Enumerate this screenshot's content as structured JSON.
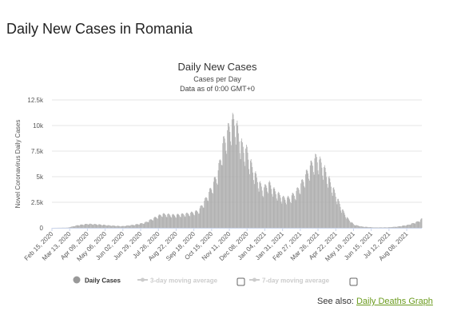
{
  "page": {
    "title": "Daily New Cases in Romania"
  },
  "see_also": {
    "prefix": "See also:",
    "link_label": "Daily Deaths Graph"
  },
  "colors": {
    "bars": "#aaaaaa",
    "grid": "#e6e6e6",
    "legend_inactive": "#cccccc",
    "link": "#6b9b1e"
  },
  "chart_data": {
    "type": "bar",
    "title": "Daily New Cases",
    "subtitle_lines": [
      "Cases per Day",
      "Data as of 0:00 GMT+0"
    ],
    "ylabel": "Novel Coronavirus Daily Cases",
    "xlabel": "",
    "ylim": [
      0,
      12500
    ],
    "y_ticks": [
      "0",
      "2.5k",
      "5k",
      "7.5k",
      "10k",
      "12.5k"
    ],
    "y_tick_values": [
      0,
      2500,
      5000,
      7500,
      10000,
      12500
    ],
    "x_range": [
      "2020-02-15",
      "2021-08-31"
    ],
    "x_ticks": [
      "2020-02-15",
      "2020-03-13",
      "2020-04-09",
      "2020-05-06",
      "2020-06-02",
      "2020-06-29",
      "2020-07-26",
      "2020-08-22",
      "2020-09-18",
      "2020-10-15",
      "2020-11-11",
      "2020-12-08",
      "2021-01-04",
      "2021-01-31",
      "2021-02-27",
      "2021-03-26",
      "2021-04-22",
      "2021-05-19",
      "2021-06-15",
      "2021-07-12",
      "2021-08-08"
    ],
    "x_tick_labels": [
      "Feb 15, 2020",
      "Mar 13, 2020",
      "Apr 09, 2020",
      "May 06, 2020",
      "Jun 02, 2020",
      "Jun 29, 2020",
      "Jul 26, 2020",
      "Aug 22, 2020",
      "Sep 18, 2020",
      "Oct 15, 2020",
      "Nov 11, 2020",
      "Dec 08, 2020",
      "Jan 04, 2021",
      "Jan 31, 2021",
      "Feb 27, 2021",
      "Mar 26, 2021",
      "Apr 22, 2021",
      "May 19, 2021",
      "Jun 15, 2021",
      "Jul 12, 2021",
      "Aug 08, 2021"
    ],
    "grid": true,
    "legend_position": "bottom",
    "legend": [
      {
        "label": "Daily Cases",
        "active": true
      },
      {
        "label": "3-day moving average",
        "active": false
      },
      {
        "label": "7-day moving average",
        "active": false
      }
    ],
    "series": [
      {
        "name": "Daily Cases",
        "approx_daily_values": [
          [
            "2020-02-15",
            0
          ],
          [
            "2020-03-10",
            20
          ],
          [
            "2020-03-25",
            250
          ],
          [
            "2020-04-10",
            380
          ],
          [
            "2020-04-25",
            330
          ],
          [
            "2020-05-15",
            220
          ],
          [
            "2020-06-01",
            160
          ],
          [
            "2020-06-20",
            300
          ],
          [
            "2020-07-05",
            480
          ],
          [
            "2020-07-20",
            950
          ],
          [
            "2020-08-01",
            1300
          ],
          [
            "2020-08-20",
            1200
          ],
          [
            "2020-09-10",
            1350
          ],
          [
            "2020-09-25",
            1600
          ],
          [
            "2020-10-05",
            2600
          ],
          [
            "2020-10-15",
            3800
          ],
          [
            "2020-10-25",
            5300
          ],
          [
            "2020-11-01",
            7800
          ],
          [
            "2020-11-08",
            9000
          ],
          [
            "2020-11-15",
            10000
          ],
          [
            "2020-11-20",
            10200
          ],
          [
            "2020-11-25",
            8800
          ],
          [
            "2020-12-01",
            7600
          ],
          [
            "2020-12-08",
            7200
          ],
          [
            "2020-12-15",
            5800
          ],
          [
            "2020-12-22",
            4800
          ],
          [
            "2021-01-01",
            3600
          ],
          [
            "2021-01-10",
            4200
          ],
          [
            "2021-01-20",
            3400
          ],
          [
            "2021-02-01",
            2800
          ],
          [
            "2021-02-10",
            2800
          ],
          [
            "2021-02-20",
            3300
          ],
          [
            "2021-03-01",
            4200
          ],
          [
            "2021-03-10",
            5300
          ],
          [
            "2021-03-18",
            6200
          ],
          [
            "2021-03-24",
            6600
          ],
          [
            "2021-04-01",
            6000
          ],
          [
            "2021-04-10",
            4800
          ],
          [
            "2021-04-20",
            3400
          ],
          [
            "2021-05-01",
            1800
          ],
          [
            "2021-05-10",
            900
          ],
          [
            "2021-05-20",
            300
          ],
          [
            "2021-06-01",
            120
          ],
          [
            "2021-06-20",
            40
          ],
          [
            "2021-07-10",
            50
          ],
          [
            "2021-07-25",
            120
          ],
          [
            "2021-08-10",
            280
          ],
          [
            "2021-08-25",
            600
          ],
          [
            "2021-08-31",
            850
          ]
        ]
      }
    ]
  }
}
